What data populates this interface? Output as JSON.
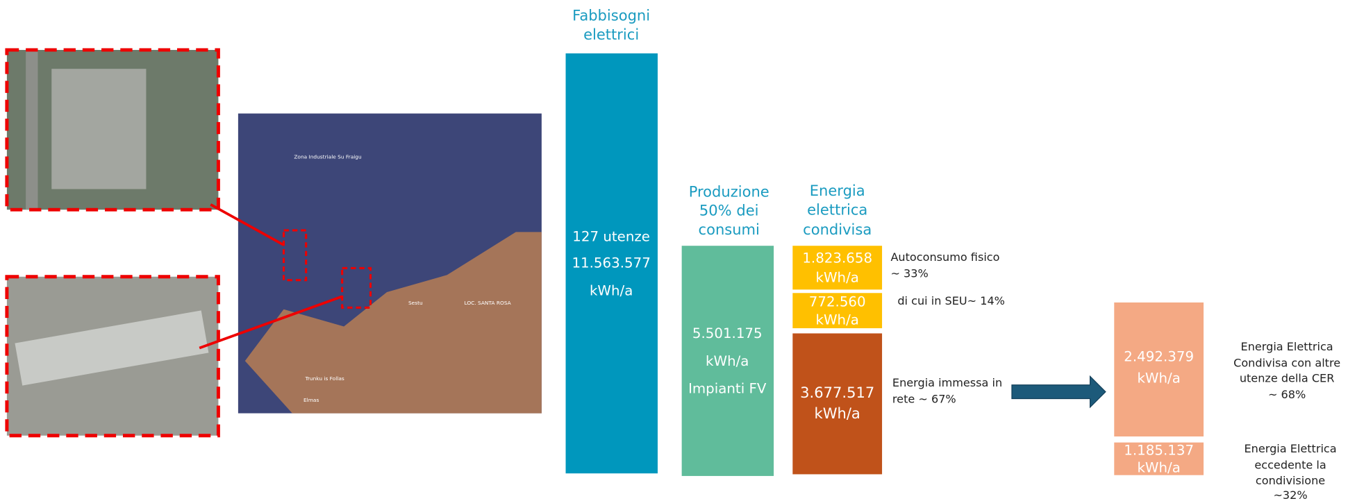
{
  "map": {
    "labels": [
      "Zona Industriale Su Fraigu",
      "Sestu",
      "LOC. SANTA ROSA",
      "Trunku is Follas",
      "Elmas"
    ]
  },
  "columns": [
    {
      "title": [
        "Fabbisogni",
        "elettrici"
      ],
      "lines": [
        "127 utenze",
        "11.563.577",
        "kWh/a"
      ]
    },
    {
      "title": [
        "Produzione",
        "50% dei",
        "consumi"
      ],
      "lines": [
        "5.501.175",
        "kWh/a",
        "Impianti FV"
      ]
    },
    {
      "title": [
        "Energia",
        "elettrica",
        "condivisa"
      ]
    }
  ],
  "shared_blocks": [
    {
      "lines": [
        "1.823.658",
        "kWh/a"
      ],
      "note": [
        "Autoconsumo fisico",
        "~ 33%"
      ]
    },
    {
      "lines": [
        "772.560",
        "kWh/a"
      ],
      "note": [
        "di cui in SEU~ 14%"
      ]
    },
    {
      "lines": [
        "3.677.517",
        "kWh/a"
      ],
      "note": [
        "Energia immessa in",
        "rete ~ 67%"
      ]
    }
  ],
  "grid_blocks": [
    {
      "lines": [
        "2.492.379",
        "kWh/a"
      ],
      "note": [
        "Energia Elettrica",
        "Condivisa con altre",
        "utenze della CER",
        "~ 68%"
      ]
    },
    {
      "lines": [
        "1.185.137",
        "kWh/a"
      ],
      "note": [
        "Energia Elettrica",
        "eccedente la",
        "condivisione",
        "~32%"
      ]
    }
  ]
}
